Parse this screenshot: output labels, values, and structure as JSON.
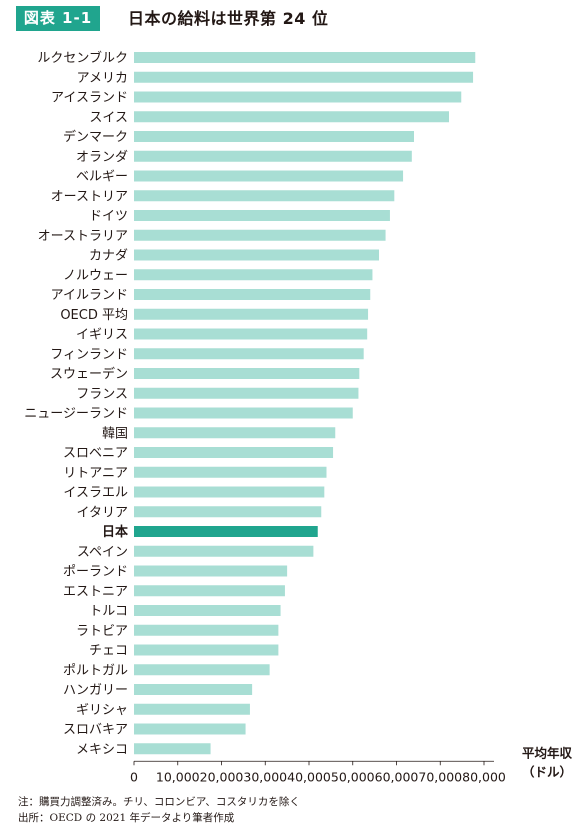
{
  "header": {
    "badge": "図表 1-1",
    "title": "日本の給料は世界第 24 位"
  },
  "colors": {
    "bar": "#a8ded4",
    "highlight": "#20a58e",
    "badge": "#20a58e"
  },
  "chart_data": {
    "type": "bar",
    "orientation": "horizontal",
    "title": "日本の給料は世界第 24 位",
    "xlabel": "平均年収（ドル）",
    "xlabel_lines": [
      "平均年収",
      "（ドル）"
    ],
    "xlim": [
      0,
      80000
    ],
    "xticks": [
      0,
      10000,
      20000,
      30000,
      40000,
      50000,
      60000,
      70000,
      80000
    ],
    "xtick_labels": [
      "0",
      "10,000",
      "20,000",
      "30,000",
      "40,000",
      "50,000",
      "60,000",
      "70,000",
      "80,000"
    ],
    "highlight": "日本",
    "categories": [
      "ルクセンブルク",
      "アメリカ",
      "アイスランド",
      "スイス",
      "デンマーク",
      "オランダ",
      "ベルギー",
      "オーストリア",
      "ドイツ",
      "オーストラリア",
      "カナダ",
      "ノルウェー",
      "アイルランド",
      "OECD 平均",
      "イギリス",
      "フィンランド",
      "スウェーデン",
      "フランス",
      "ニュージーランド",
      "韓国",
      "スロベニア",
      "リトアニア",
      "イスラエル",
      "イタリア",
      "日本",
      "スペイン",
      "ポーランド",
      "エストニア",
      "トルコ",
      "ラトビア",
      "チェコ",
      "ポルトガル",
      "ハンガリー",
      "ギリシャ",
      "スロバキア",
      "メキシコ"
    ],
    "values": [
      78000,
      77500,
      74800,
      72000,
      64000,
      63500,
      61500,
      59500,
      58500,
      57500,
      56000,
      54500,
      54000,
      53500,
      53300,
      52500,
      51500,
      51300,
      50000,
      46000,
      45500,
      44000,
      43500,
      42800,
      42000,
      41000,
      35000,
      34500,
      33500,
      33000,
      33000,
      31000,
      27000,
      26500,
      25500,
      17500
    ]
  },
  "footer": {
    "note": "注：購買力調整済み。チリ、コロンビア、コスタリカを除く",
    "source": "出所：OECD の 2021 年データより筆者作成"
  }
}
